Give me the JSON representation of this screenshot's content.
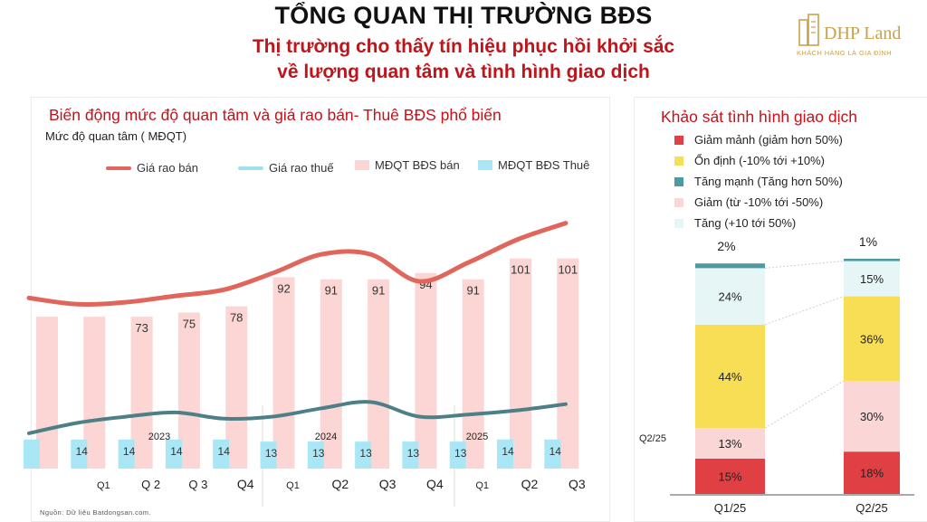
{
  "header": {
    "title": "TỔNG QUAN THỊ TRƯỜNG BĐS",
    "subtitle_line1": "Thị trường cho thấy tín hiệu phục hồi khởi sắc",
    "subtitle_line2": "về lượng quan tâm và tình hình giao dịch"
  },
  "logo": {
    "brand": "DHP Land",
    "tagline": "KHÁCH HÀNG LÀ GIA ĐÌNH"
  },
  "source_note": "Nguồn: Dữ liệu Batdongsan.com.",
  "colors": {
    "sale_price": "#e0665c",
    "rent_price": "#9fe2ee",
    "interest_sale": "#fbd6d4",
    "interest_rent": "#a9e7f6",
    "rent_curve": "#4d7f86",
    "title_red": "#c0141b",
    "decline_strong": "#e04043",
    "stable": "#f7de55",
    "increase_strong": "#4e9aa0",
    "decline": "#fbd6d7",
    "increase": "#e6f5f6"
  },
  "chart_data": [
    {
      "type": "bar",
      "title": "Biến động mức độ quan tâm và giá rao bán- Thuê BĐS phổ biến",
      "ylabel": "Mức độ quan tâm ( MĐQT)",
      "legend": [
        "Giá rao bán",
        "Giá rao thuế",
        "MĐQT BĐS bán",
        "MĐQT BĐS Thuê"
      ],
      "year_labels": [
        "2023",
        "2024",
        "2025"
      ],
      "categories": [
        "",
        "Q1",
        "Q 2",
        "Q 3",
        "Q4",
        "Q1",
        "Q2",
        "Q3",
        "Q4",
        "Q1",
        "Q2",
        "Q3"
      ],
      "series": [
        {
          "name": "MĐQT BĐS bán",
          "values": [
            73,
            73,
            73,
            75,
            78,
            92,
            91,
            91,
            94,
            91,
            101,
            101
          ],
          "labels": [
            "",
            "",
            "73",
            "75",
            "78",
            "92",
            "91",
            "91",
            "94",
            "91",
            "101",
            "101"
          ]
        },
        {
          "name": "MĐQT BĐS Thuê",
          "values": [
            14,
            14,
            14,
            14,
            14,
            13,
            13,
            13,
            13,
            13,
            14,
            14
          ],
          "labels": [
            "",
            "14",
            "14",
            "14",
            "14",
            "13",
            "13",
            "13",
            "13",
            "13",
            "14",
            "14"
          ]
        },
        {
          "name": "Giá rao bán",
          "values": [
            82,
            79,
            80,
            83,
            86,
            94,
            103,
            103,
            90,
            99,
            110,
            118
          ]
        },
        {
          "name": "Giá rao thuế",
          "values": [
            17,
            22,
            25,
            27,
            24,
            25,
            29,
            32,
            25,
            26,
            28,
            31
          ]
        }
      ],
      "ylim": [
        0,
        130
      ]
    },
    {
      "type": "bar",
      "title": "Khảo sát tình hình giao dịch",
      "stacked": true,
      "categories": [
        "Q1/25",
        "Q2/25"
      ],
      "side_label": "Q2/25",
      "series": [
        {
          "name": "Giảm mạnh (giảm hơn 50%)",
          "values": [
            15,
            18
          ]
        },
        {
          "name": "Giảm (từ -10% tới -50%)",
          "values": [
            13,
            30
          ]
        },
        {
          "name": "Ổn định (-10% tới +10%)",
          "values": [
            44,
            36
          ]
        },
        {
          "name": "Tăng (+10 tới 50%)",
          "values": [
            24,
            15
          ]
        },
        {
          "name": "Tăng mạnh (Tăng hơn 50%)",
          "values": [
            2,
            1
          ]
        }
      ],
      "legend": [
        "Giảm mảnh (giảm hơn 50%)",
        "Ổn định (-10% tới +10%)",
        "Tăng mạnh (Tăng hơn 50%)",
        "Giảm (từ -10% tới -50%)",
        "Tăng (+10 tới 50%)"
      ],
      "ylim": [
        0,
        100
      ]
    }
  ]
}
